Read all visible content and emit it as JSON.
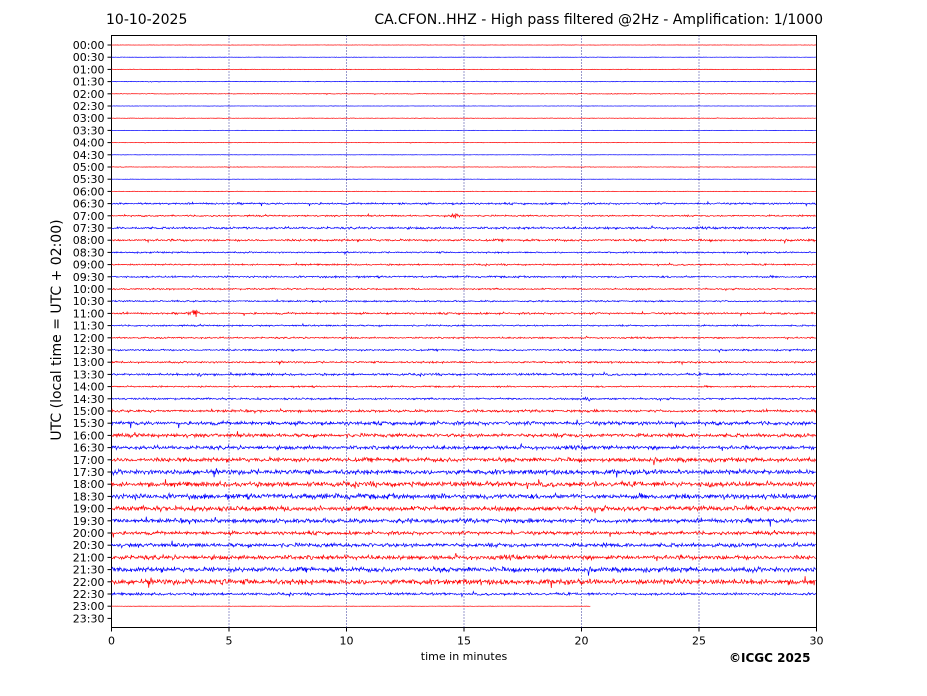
{
  "header": {
    "date": "10-10-2025",
    "title": "CA.CFON..HHZ - High pass filtered @2Hz - Amplification: 1/1000"
  },
  "footer": {
    "copyright": "©ICGC 2025"
  },
  "chart_data": {
    "type": "line",
    "xlabel": "time in minutes",
    "ylabel": "UTC (local time = UTC + 02:00)",
    "xlim": [
      0,
      30
    ],
    "xticks": [
      0,
      5,
      10,
      15,
      20,
      25,
      30
    ],
    "grid": "vertical dotted lines at 5-minute intervals",
    "colors": {
      "even_rows": "#ff0000",
      "odd_rows": "#0000ff",
      "grid": "#000080"
    },
    "rows": [
      "00:00",
      "00:30",
      "01:00",
      "01:30",
      "02:00",
      "02:30",
      "03:00",
      "03:30",
      "04:00",
      "04:30",
      "05:00",
      "05:30",
      "06:00",
      "06:30",
      "07:00",
      "07:30",
      "08:00",
      "08:30",
      "09:00",
      "09:30",
      "10:00",
      "10:30",
      "11:00",
      "11:30",
      "12:00",
      "12:30",
      "13:00",
      "13:30",
      "14:00",
      "14:30",
      "15:00",
      "15:30",
      "16:00",
      "16:30",
      "17:00",
      "17:30",
      "18:00",
      "18:30",
      "19:00",
      "19:30",
      "20:00",
      "20:30",
      "21:00",
      "21:30",
      "22:00",
      "22:30",
      "23:00",
      "23:30"
    ],
    "noise_level": [
      0.2,
      0.2,
      0.4,
      0.4,
      0.4,
      0.2,
      0.3,
      0.2,
      0.3,
      0.2,
      0.3,
      0.2,
      0.3,
      1.2,
      1.0,
      1.4,
      1.4,
      1.0,
      1.0,
      1.2,
      1.0,
      1.0,
      1.2,
      1.0,
      1.0,
      1.1,
      1.2,
      1.4,
      1.0,
      1.2,
      1.6,
      2.4,
      2.4,
      2.4,
      2.8,
      3.2,
      3.2,
      3.4,
      3.2,
      2.8,
      2.2,
      2.6,
      2.8,
      3.2,
      3.6,
      1.6,
      0.2,
      0
    ],
    "last_sample_minute": 20.4,
    "events": [
      {
        "row": "07:00",
        "minute": 14.6,
        "amplitude": 3
      },
      {
        "row": "11:00",
        "minute": 3.5,
        "amplitude": 5
      },
      {
        "row": "13:30",
        "minute": 3.7,
        "amplitude": 2.5
      },
      {
        "row": "14:30",
        "minute": 20.3,
        "amplitude": 2.5
      },
      {
        "row": "18:00",
        "minute": 25.5,
        "amplitude": 4
      },
      {
        "row": "22:00",
        "minute": 4.7,
        "amplitude": 4
      }
    ]
  }
}
